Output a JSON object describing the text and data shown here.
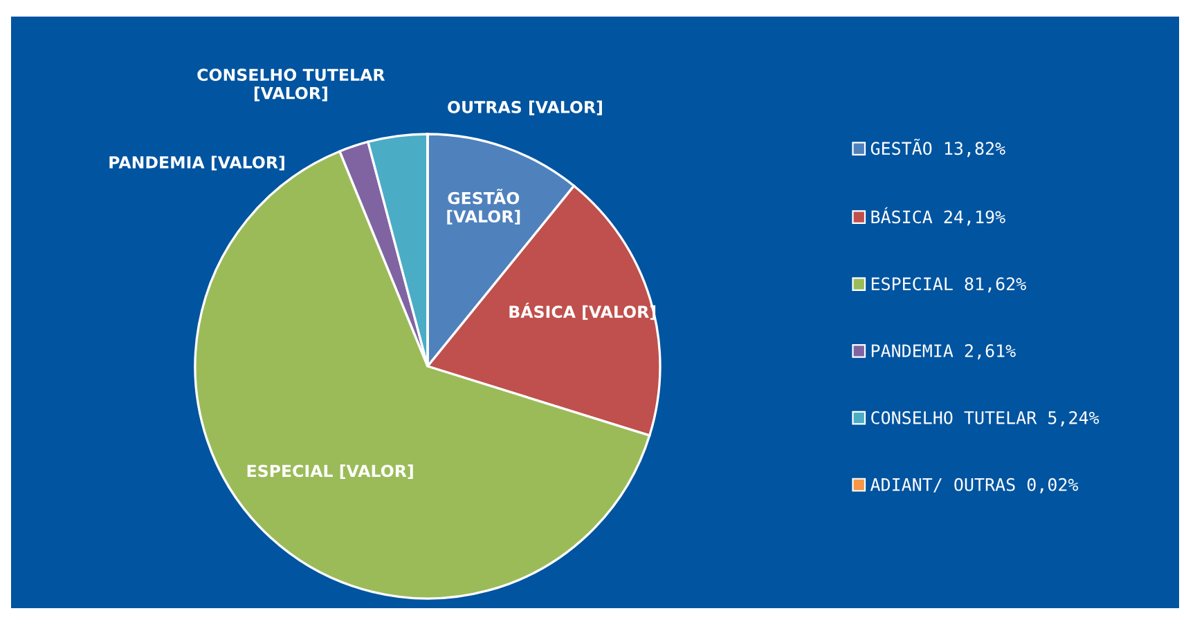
{
  "chart_data": {
    "type": "pie",
    "categories": [
      "GESTÃO 13,82%",
      "BÁSICA 24,19%",
      "ESPECIAL 81,62%",
      "PANDEMIA 2,61%",
      "CONSELHO TUTELAR 5,24%",
      "ADIANT/ OUTRAS 0,02%"
    ],
    "values": [
      13.82,
      24.19,
      81.62,
      2.61,
      5.24,
      0.02
    ],
    "colors": [
      "#4f81bd",
      "#c0504d",
      "#9bbb59",
      "#8064a2",
      "#4bacc6",
      "#f79646"
    ],
    "annotations": [
      "GESTÃO\n[VALOR]",
      "BÁSICA [VALOR]",
      "ESPECIAL [VALOR]",
      "PANDEMIA [VALOR]",
      "CONSELHO TUTELAR\n[VALOR]",
      "OUTRAS [VALOR]"
    ],
    "legend": "right"
  }
}
